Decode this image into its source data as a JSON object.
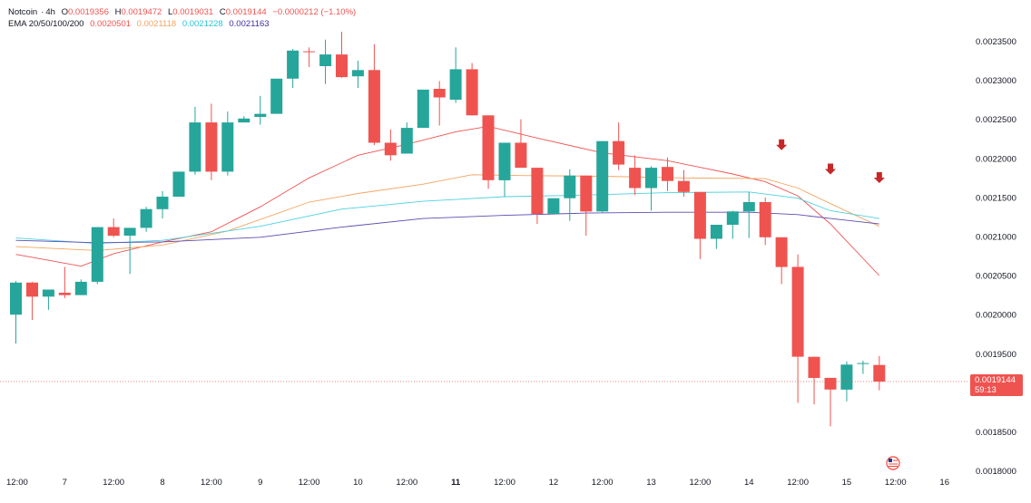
{
  "header": {
    "symbol": "Notcoin",
    "interval": "4h",
    "o_label": "O",
    "o_value": "0.0019356",
    "h_label": "H",
    "h_value": "0.0019472",
    "l_label": "L",
    "l_value": "0.0019031",
    "c_label": "C",
    "c_value": "0.0019144",
    "change": "−0.0000212 (−1.10%)"
  },
  "ema_legend": {
    "label": "EMA 20/50/100/200",
    "values": [
      "0.0020501",
      "0.0021118",
      "0.0021228",
      "0.0021163"
    ]
  },
  "last_price": {
    "price": "0.0019144",
    "countdown": "59:13",
    "value": 0.0019144
  },
  "colors": {
    "up": "#26a69a",
    "down": "#ef5350",
    "ema20": "#ef5350",
    "ema50": "#f4a460",
    "ema100": "#4dd0e1",
    "ema200": "#5c4db1",
    "arrow": "#c62828",
    "grid_text": "#131722"
  },
  "chart_data": {
    "type": "candlestick",
    "yaxis": {
      "range": [
        0.0018,
        0.00236
      ],
      "ticks": [
        "0.0018000",
        "0.0018500",
        "0.0019000",
        "0.0019500",
        "0.0020000",
        "0.0020500",
        "0.0021000",
        "0.0021500",
        "0.0022000",
        "0.0022500",
        "0.0023000",
        "0.0023500"
      ],
      "tick_values": [
        0.0018,
        0.00185,
        0.0019,
        0.00195,
        0.002,
        0.00205,
        0.0021,
        0.00215,
        0.0022,
        0.00225,
        0.0023,
        0.00235
      ]
    },
    "xaxis": {
      "labels": [
        "12:00",
        "7",
        "12:00",
        "8",
        "12:00",
        "9",
        "12:00",
        "10",
        "12:00",
        "11",
        "12:00",
        "12",
        "12:00",
        "13",
        "12:00",
        "14",
        "12:00",
        "15",
        "12:00",
        "16"
      ],
      "label_index": [
        0,
        3,
        6,
        9,
        12,
        15,
        18,
        21,
        24,
        27,
        30,
        33,
        36,
        39,
        42,
        45,
        48,
        51,
        54,
        57
      ],
      "bold_labels": [
        "11"
      ]
    },
    "candles": [
      {
        "o": 0.002,
        "h": 0.0020431,
        "l": 0.0019631,
        "c": 0.0020411
      },
      {
        "o": 0.0020411,
        "h": 0.0020421,
        "l": 0.0019931,
        "c": 0.0020231
      },
      {
        "o": 0.0020231,
        "h": 0.0020321,
        "l": 0.0020061,
        "c": 0.0020321
      },
      {
        "o": 0.0020281,
        "h": 0.0020611,
        "l": 0.0020211,
        "c": 0.0020251
      },
      {
        "o": 0.0020251,
        "h": 0.0020451,
        "l": 0.0020251,
        "c": 0.0020421
      },
      {
        "o": 0.0020421,
        "h": 0.0021121,
        "l": 0.0020391,
        "c": 0.0021121
      },
      {
        "o": 0.0021121,
        "h": 0.0021231,
        "l": 0.0020991,
        "c": 0.0021011
      },
      {
        "o": 0.0021011,
        "h": 0.0021111,
        "l": 0.0020521,
        "c": 0.0021111
      },
      {
        "o": 0.0021111,
        "h": 0.0021381,
        "l": 0.0021061,
        "c": 0.0021351
      },
      {
        "o": 0.0021351,
        "h": 0.0021581,
        "l": 0.0021231,
        "c": 0.0021511
      },
      {
        "o": 0.0021511,
        "h": 0.0021831,
        "l": 0.0021511,
        "c": 0.0021831
      },
      {
        "o": 0.0021831,
        "h": 0.0022661,
        "l": 0.0021791,
        "c": 0.0022461
      },
      {
        "o": 0.0022461,
        "h": 0.0022701,
        "l": 0.0021721,
        "c": 0.0021831
      },
      {
        "o": 0.0021831,
        "h": 0.0022601,
        "l": 0.0021781,
        "c": 0.0022461
      },
      {
        "o": 0.0022461,
        "h": 0.0022541,
        "l": 0.0022461,
        "c": 0.0022511
      },
      {
        "o": 0.0022531,
        "h": 0.0022801,
        "l": 0.0022431,
        "c": 0.0022571
      },
      {
        "o": 0.0022571,
        "h": 0.0023021,
        "l": 0.0022571,
        "c": 0.0023021
      },
      {
        "o": 0.0023021,
        "h": 0.0023401,
        "l": 0.0022901,
        "c": 0.0023381
      },
      {
        "o": 0.0023371,
        "h": 0.0023421,
        "l": 0.0023171,
        "c": 0.0023361
      },
      {
        "o": 0.0023181,
        "h": 0.0023521,
        "l": 0.0022951,
        "c": 0.0023331
      },
      {
        "o": 0.0023331,
        "h": 0.0023621,
        "l": 0.0023031,
        "c": 0.0023041
      },
      {
        "o": 0.0023051,
        "h": 0.0023251,
        "l": 0.0022901,
        "c": 0.0023131
      },
      {
        "o": 0.0023131,
        "h": 0.0023461,
        "l": 0.0022171,
        "c": 0.0022201
      },
      {
        "o": 0.0022201,
        "h": 0.0022371,
        "l": 0.0021971,
        "c": 0.0022041
      },
      {
        "o": 0.0022061,
        "h": 0.0022461,
        "l": 0.0022061,
        "c": 0.0022391
      },
      {
        "o": 0.0022391,
        "h": 0.0022881,
        "l": 0.0022391,
        "c": 0.0022881
      },
      {
        "o": 0.0022891,
        "h": 0.0022991,
        "l": 0.0022421,
        "c": 0.0022781
      },
      {
        "o": 0.0022751,
        "h": 0.0023421,
        "l": 0.0022711,
        "c": 0.0023141
      },
      {
        "o": 0.0023141,
        "h": 0.0023221,
        "l": 0.0022551,
        "c": 0.0022551
      },
      {
        "o": 0.0022551,
        "h": 0.0022551,
        "l": 0.0021611,
        "c": 0.0021721
      },
      {
        "o": 0.0021721,
        "h": 0.0022201,
        "l": 0.0021511,
        "c": 0.0022201
      },
      {
        "o": 0.0022201,
        "h": 0.0022501,
        "l": 0.0021881,
        "c": 0.0021881
      },
      {
        "o": 0.0021881,
        "h": 0.0021881,
        "l": 0.0021161,
        "c": 0.0021291
      },
      {
        "o": 0.0021291,
        "h": 0.0021481,
        "l": 0.0021281,
        "c": 0.0021491
      },
      {
        "o": 0.0021491,
        "h": 0.0021861,
        "l": 0.0021201,
        "c": 0.0021781
      },
      {
        "o": 0.0021781,
        "h": 0.0021781,
        "l": 0.0021011,
        "c": 0.0021321
      },
      {
        "o": 0.0021321,
        "h": 0.0022221,
        "l": 0.0021311,
        "c": 0.0022221
      },
      {
        "o": 0.0022221,
        "h": 0.0022461,
        "l": 0.0021851,
        "c": 0.0021921
      },
      {
        "o": 0.0021881,
        "h": 0.0022041,
        "l": 0.0021531,
        "c": 0.0021621
      },
      {
        "o": 0.0021621,
        "h": 0.0021901,
        "l": 0.0021331,
        "c": 0.0021881
      },
      {
        "o": 0.0021891,
        "h": 0.0022011,
        "l": 0.0021581,
        "c": 0.0021711
      },
      {
        "o": 0.0021711,
        "h": 0.0021851,
        "l": 0.0021511,
        "c": 0.0021571
      },
      {
        "o": 0.0021571,
        "h": 0.0021571,
        "l": 0.0020711,
        "c": 0.0020971
      },
      {
        "o": 0.0020971,
        "h": 0.0021131,
        "l": 0.0020841,
        "c": 0.0021151
      },
      {
        "o": 0.0021151,
        "h": 0.0021331,
        "l": 0.0020971,
        "c": 0.0021321
      },
      {
        "o": 0.0021321,
        "h": 0.0021571,
        "l": 0.0020981,
        "c": 0.0021441
      },
      {
        "o": 0.0021441,
        "h": 0.0021501,
        "l": 0.0020891,
        "c": 0.0020991
      },
      {
        "o": 0.0020991,
        "h": 0.0020991,
        "l": 0.0020391,
        "c": 0.0020611
      },
      {
        "o": 0.0020611,
        "h": 0.0020771,
        "l": 0.0018871,
        "c": 0.0019461
      },
      {
        "o": 0.0019461,
        "h": 0.0019461,
        "l": 0.0018851,
        "c": 0.0019191
      },
      {
        "o": 0.0019191,
        "h": 0.0019171,
        "l": 0.0018571,
        "c": 0.0019041
      },
      {
        "o": 0.0019041,
        "h": 0.0019401,
        "l": 0.0018891,
        "c": 0.0019361
      },
      {
        "o": 0.0019371,
        "h": 0.0019411,
        "l": 0.0019241,
        "c": 0.0019381
      },
      {
        "o": 0.0019356,
        "h": 0.0019472,
        "l": 0.0019031,
        "c": 0.0019144
      }
    ],
    "ema": [
      {
        "name": "EMA 20",
        "color": "#ef5350",
        "points": [
          [
            0,
            0.0020771
          ],
          [
            4,
            0.0020621
          ],
          [
            6,
            0.0020781
          ],
          [
            9,
            0.0020931
          ],
          [
            12,
            0.0021061
          ],
          [
            15,
            0.0021381
          ],
          [
            18,
            0.0021751
          ],
          [
            21,
            0.0022041
          ],
          [
            24,
            0.0022181
          ],
          [
            27,
            0.0022341
          ],
          [
            29,
            0.0022411
          ],
          [
            32,
            0.0022261
          ],
          [
            36,
            0.0022071
          ],
          [
            40,
            0.0021971
          ],
          [
            44,
            0.0021801
          ],
          [
            46,
            0.0021701
          ],
          [
            48,
            0.0021521
          ],
          [
            50,
            0.0021161
          ],
          [
            53,
            0.0020501
          ]
        ]
      },
      {
        "name": "EMA 50",
        "color": "#f4a460",
        "points": [
          [
            0,
            0.0020871
          ],
          [
            5,
            0.0020821
          ],
          [
            9,
            0.0020891
          ],
          [
            13,
            0.0021071
          ],
          [
            18,
            0.0021441
          ],
          [
            21,
            0.0021551
          ],
          [
            25,
            0.0021671
          ],
          [
            28,
            0.0021791
          ],
          [
            31,
            0.0021781
          ],
          [
            36,
            0.0021771
          ],
          [
            41,
            0.0021751
          ],
          [
            46,
            0.0021741
          ],
          [
            48,
            0.0021621
          ],
          [
            50,
            0.0021421
          ],
          [
            53,
            0.0021131
          ]
        ]
      },
      {
        "name": "EMA 100",
        "color": "#4dd0e1",
        "points": [
          [
            0,
            0.0020981
          ],
          [
            5,
            0.0020911
          ],
          [
            9,
            0.0020951
          ],
          [
            15,
            0.0021131
          ],
          [
            20,
            0.0021351
          ],
          [
            25,
            0.0021451
          ],
          [
            30,
            0.0021511
          ],
          [
            35,
            0.0021531
          ],
          [
            40,
            0.0021561
          ],
          [
            45,
            0.0021571
          ],
          [
            48,
            0.0021491
          ],
          [
            50,
            0.0021331
          ],
          [
            53,
            0.0021231
          ]
        ]
      },
      {
        "name": "EMA 200",
        "color": "#5c4db1",
        "points": [
          [
            0,
            0.0020951
          ],
          [
            5,
            0.0020921
          ],
          [
            9,
            0.0020931
          ],
          [
            15,
            0.0020991
          ],
          [
            20,
            0.0021121
          ],
          [
            25,
            0.0021231
          ],
          [
            30,
            0.0021271
          ],
          [
            35,
            0.0021301
          ],
          [
            40,
            0.0021311
          ],
          [
            45,
            0.0021311
          ],
          [
            48,
            0.0021281
          ],
          [
            50,
            0.0021231
          ],
          [
            53,
            0.0021161
          ]
        ]
      }
    ],
    "signals": [
      {
        "index": 47,
        "value": 0.0022151
      },
      {
        "index": 50,
        "value": 0.0021841
      },
      {
        "index": 53,
        "value": 0.0021731
      }
    ]
  }
}
